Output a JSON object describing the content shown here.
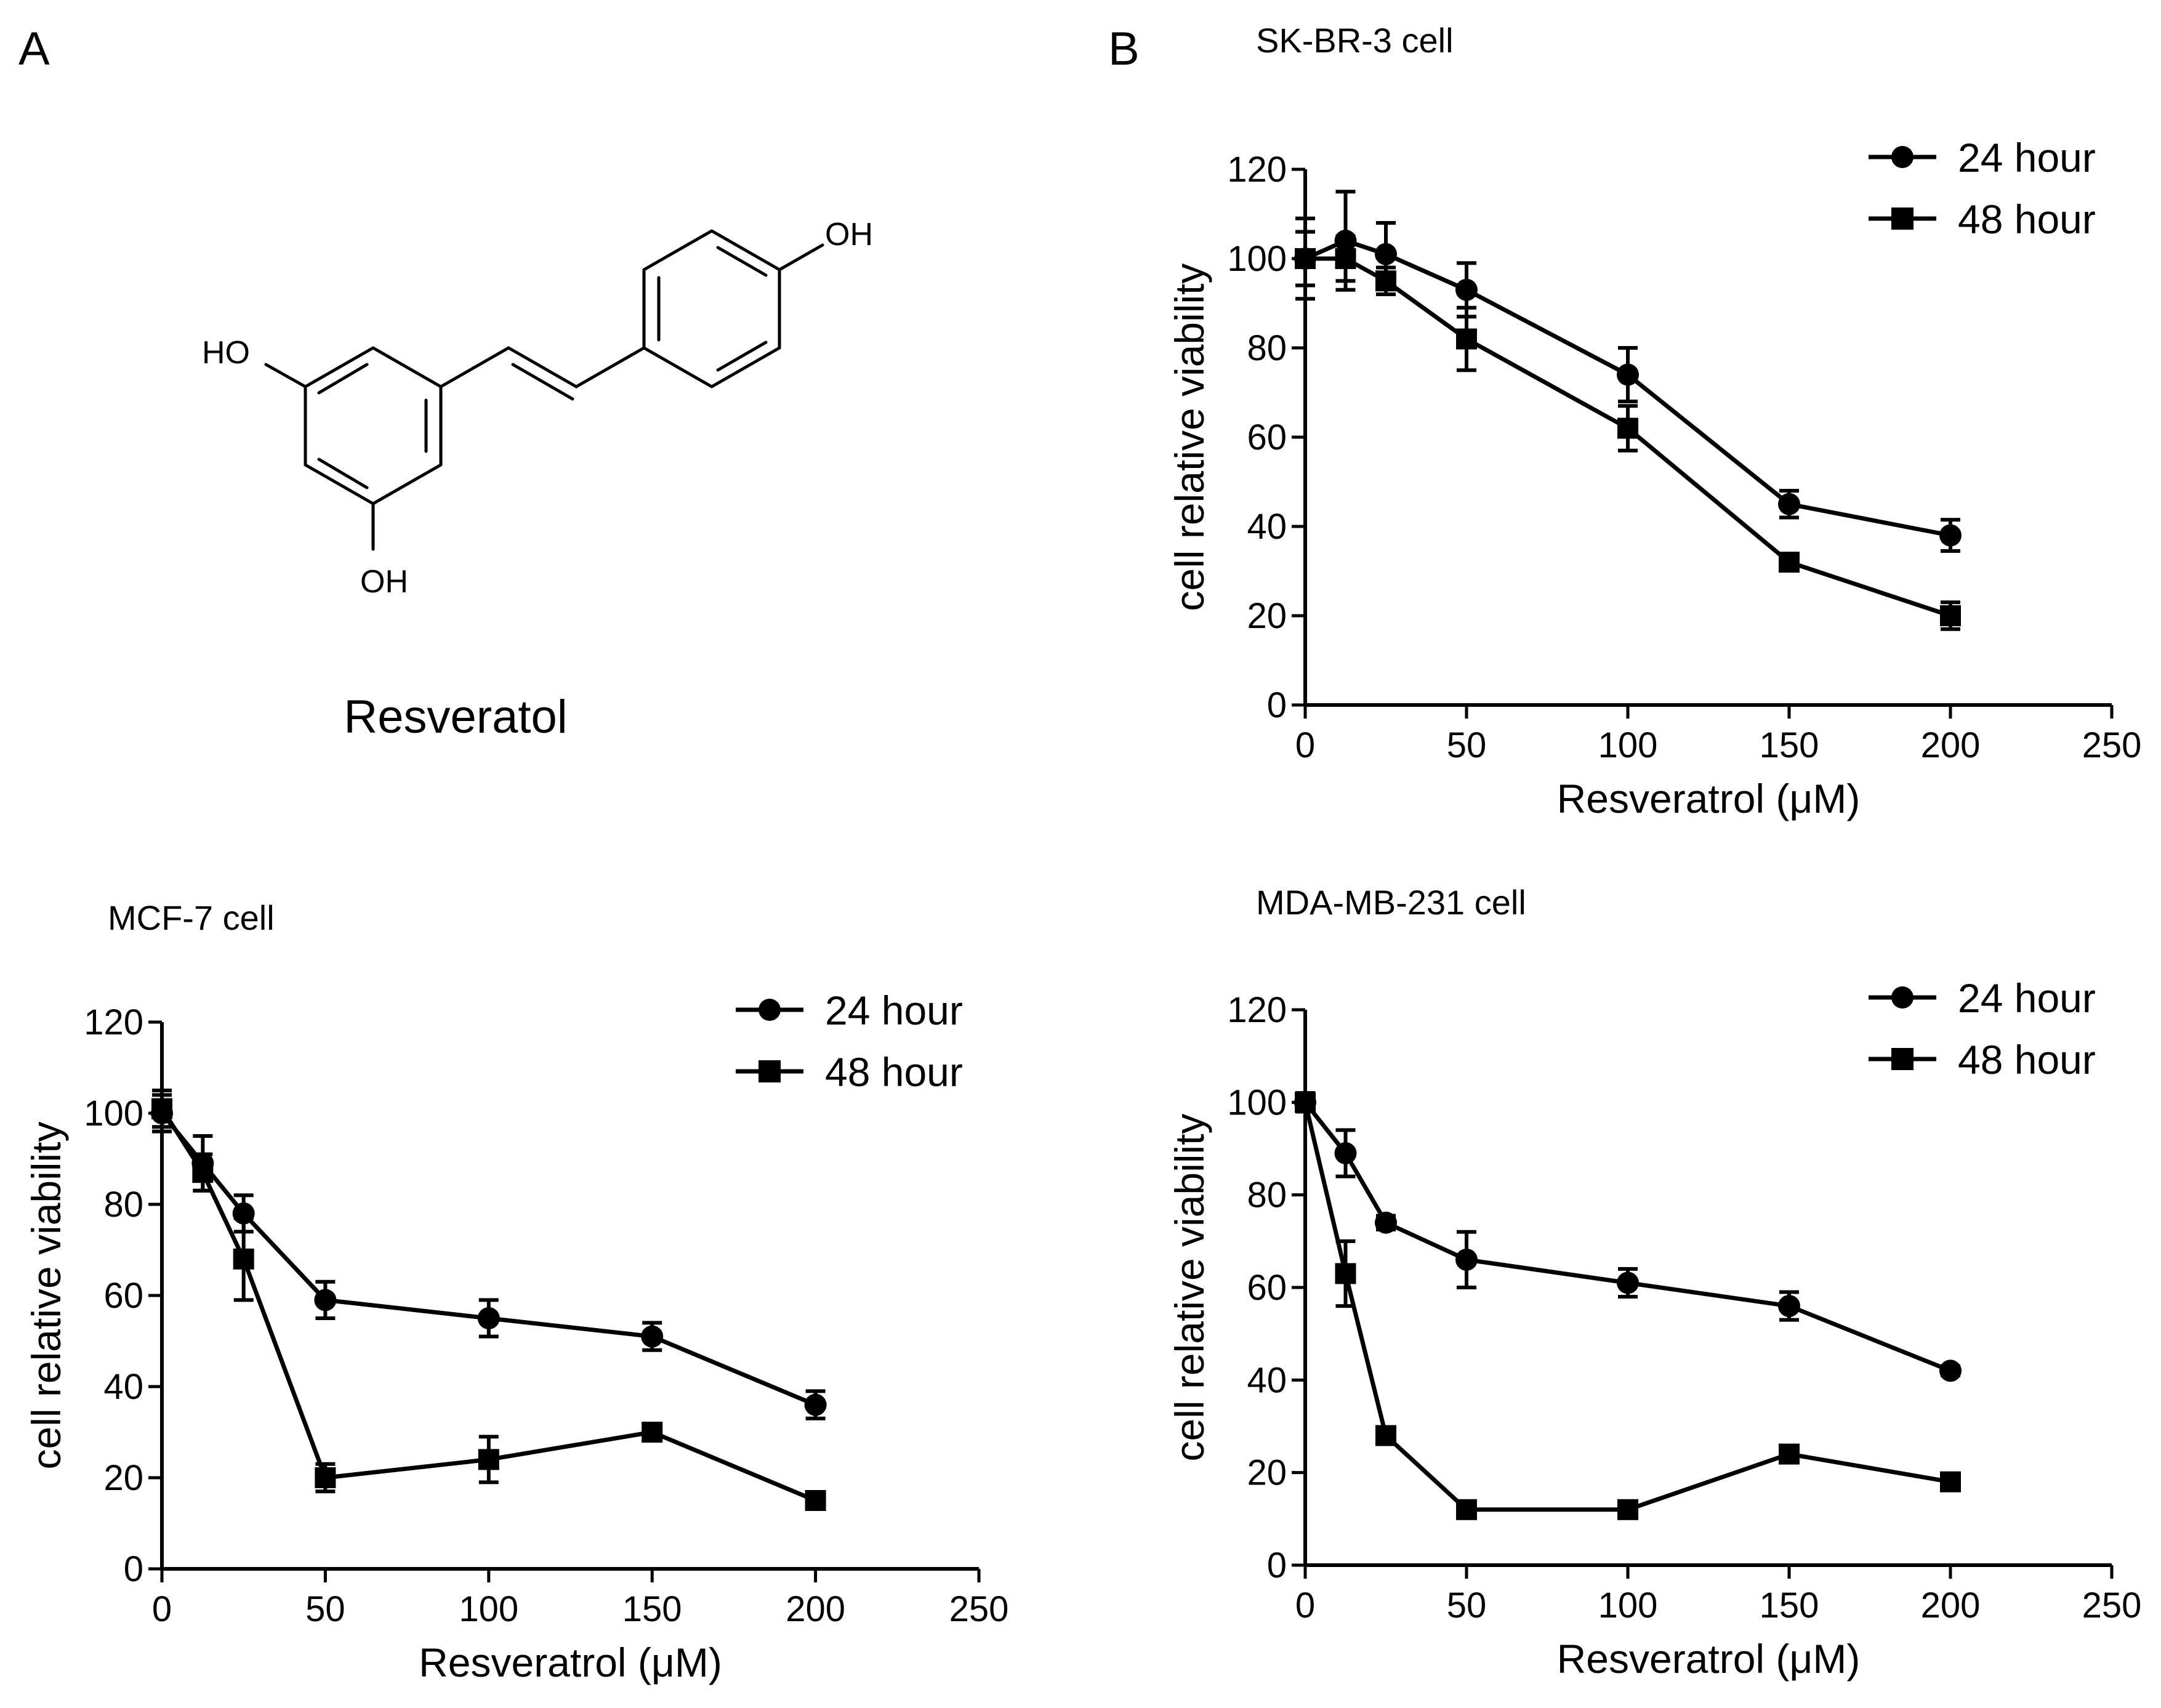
{
  "panel_labels": {
    "a": "A",
    "b": "B"
  },
  "molecule": {
    "name": "Resveratol",
    "labels": {
      "oh_top": "OH",
      "oh_left": "HO",
      "oh_bottom": "OH"
    }
  },
  "chart_data": [
    {
      "id": "skbr3",
      "type": "line",
      "title": "SK-BR-3 cell",
      "xlabel": "Resveratrol (μM)",
      "ylabel": "cell relative viability",
      "xlim": [
        0,
        250
      ],
      "ylim": [
        0,
        120
      ],
      "xticks": [
        0,
        50,
        100,
        150,
        200,
        250
      ],
      "yticks": [
        0,
        20,
        40,
        60,
        80,
        100,
        120
      ],
      "legend": "top-right",
      "series": [
        {
          "name": "24 hour",
          "marker": "circle",
          "x": [
            0,
            12.5,
            25,
            50,
            100,
            150,
            200
          ],
          "y": [
            100,
            104,
            101,
            93,
            74,
            45,
            38
          ],
          "err": [
            9,
            11,
            7,
            6,
            6,
            3,
            3.5
          ]
        },
        {
          "name": "48 hour",
          "marker": "square",
          "x": [
            0,
            12.5,
            25,
            50,
            100,
            150,
            200
          ],
          "y": [
            100,
            100,
            95,
            82,
            62,
            32,
            20
          ],
          "err": [
            6,
            5,
            3,
            7,
            5,
            1.5,
            3
          ]
        }
      ]
    },
    {
      "id": "mcf7",
      "type": "line",
      "title": "MCF-7 cell",
      "xlabel": "Resveratrol (μM)",
      "ylabel": "cell relative viability",
      "xlim": [
        0,
        250
      ],
      "ylim": [
        0,
        120
      ],
      "xticks": [
        0,
        50,
        100,
        150,
        200,
        250
      ],
      "yticks": [
        0,
        20,
        40,
        60,
        80,
        100,
        120
      ],
      "legend": "top-right",
      "series": [
        {
          "name": "24 hour",
          "marker": "circle",
          "x": [
            0,
            12.5,
            25,
            50,
            100,
            150,
            200
          ],
          "y": [
            100,
            89,
            78,
            59,
            55,
            51,
            36
          ],
          "err": [
            4,
            6,
            4,
            4,
            4,
            3,
            3
          ]
        },
        {
          "name": "48 hour",
          "marker": "square",
          "x": [
            0,
            12.5,
            25,
            50,
            100,
            150,
            200
          ],
          "y": [
            101,
            87,
            68,
            20,
            24,
            30,
            15
          ],
          "err": [
            4,
            4,
            9,
            3,
            5,
            1.5,
            1.5
          ]
        }
      ]
    },
    {
      "id": "mdamb231",
      "type": "line",
      "title": "MDA-MB-231 cell",
      "xlabel": "Resveratrol (μM)",
      "ylabel": "cell relative viability",
      "xlim": [
        0,
        250
      ],
      "ylim": [
        0,
        120
      ],
      "xticks": [
        0,
        50,
        100,
        150,
        200,
        250
      ],
      "yticks": [
        0,
        20,
        40,
        60,
        80,
        100,
        120
      ],
      "legend": "top-right",
      "series": [
        {
          "name": "24 hour",
          "marker": "circle",
          "x": [
            0,
            12.5,
            25,
            50,
            100,
            150,
            200
          ],
          "y": [
            100,
            89,
            74,
            66,
            61,
            56,
            42
          ],
          "err": [
            2,
            5,
            1.5,
            6,
            3,
            3,
            1
          ]
        },
        {
          "name": "48 hour",
          "marker": "square",
          "x": [
            0,
            12.5,
            25,
            50,
            100,
            150,
            200
          ],
          "y": [
            100,
            63,
            28,
            12,
            12,
            24,
            18
          ],
          "err": [
            2,
            7,
            1.5,
            1.5,
            1.5,
            1.5,
            1.5
          ]
        }
      ]
    }
  ]
}
